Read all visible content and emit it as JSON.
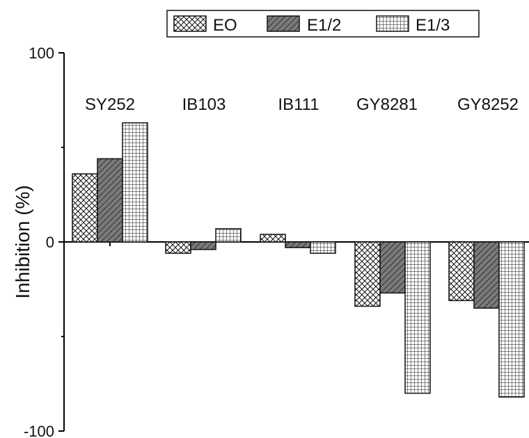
{
  "chart_data": {
    "type": "bar",
    "title": "",
    "xlabel": "",
    "ylabel": "Inhibition (%)",
    "ylim": [
      -100,
      100
    ],
    "y_ticks": [
      {
        "value": 100,
        "label": "100"
      },
      {
        "value": 0,
        "label": "0"
      },
      {
        "value": -100,
        "label": "-100"
      }
    ],
    "minor_y_ticks": [
      50,
      -50
    ],
    "categories": [
      "SY252",
      "IB103",
      "IB111",
      "GY8281",
      "GY8252"
    ],
    "series": [
      {
        "name": "EO",
        "pattern": "crosshatch",
        "values": [
          36,
          -6,
          4,
          -34,
          -31
        ]
      },
      {
        "name": "E1/2",
        "pattern": "diagonal",
        "values": [
          44,
          -4,
          -3,
          -27,
          -35
        ]
      },
      {
        "name": "E1/3",
        "pattern": "grid",
        "values": [
          63,
          7,
          -6,
          -80,
          -82
        ]
      }
    ],
    "legend_position": "top",
    "grid": false,
    "colors": {
      "axis": "#000000",
      "bar_stroke": "#111111",
      "crosshatch_fill": "#ffffff",
      "diagonal_fill": "#7a7a7a",
      "grid_fill": "#ffffff"
    }
  }
}
